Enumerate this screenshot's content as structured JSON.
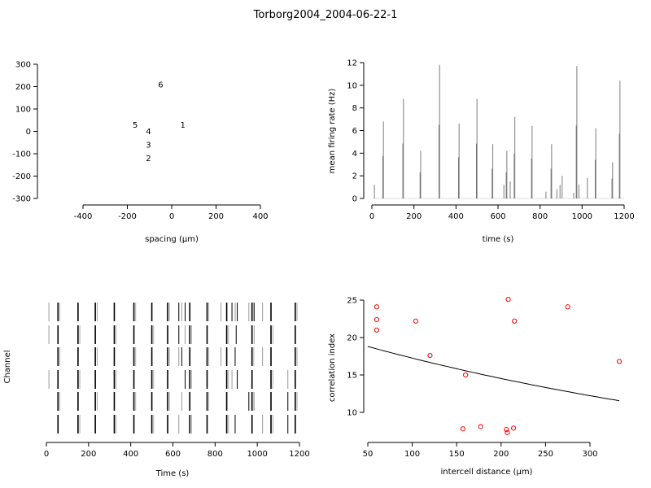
{
  "title": "Torborg2004_2004-06-22-1",
  "chart_data": [
    {
      "type": "scatter",
      "id": "layout",
      "xlabel": "spacing (µm)",
      "ylabel": "",
      "xlim": [
        -400,
        400
      ],
      "ylim": [
        -300,
        300
      ],
      "xticks": [
        -400,
        -200,
        0,
        200,
        400
      ],
      "yticks": [
        -300,
        -200,
        -100,
        0,
        100,
        200,
        300
      ],
      "points": [
        {
          "label": "1",
          "x": 50,
          "y": 30
        },
        {
          "label": "2",
          "x": -105,
          "y": -120
        },
        {
          "label": "3",
          "x": -105,
          "y": -60
        },
        {
          "label": "4",
          "x": -105,
          "y": 0
        },
        {
          "label": "5",
          "x": -165,
          "y": 30
        },
        {
          "label": "6",
          "x": -50,
          "y": 210
        }
      ]
    },
    {
      "type": "line",
      "id": "rate",
      "xlabel": "time (s)",
      "ylabel": "mean firing rate (Hz)",
      "xlim": [
        0,
        1200
      ],
      "ylim": [
        0,
        12
      ],
      "xticks": [
        0,
        200,
        400,
        600,
        800,
        1000,
        1200
      ],
      "yticks": [
        0,
        2,
        4,
        6,
        8,
        10,
        12
      ],
      "bursts": [
        {
          "t": 12,
          "rate": 1.2
        },
        {
          "t": 55,
          "rate": 6.8
        },
        {
          "t": 150,
          "rate": 8.8
        },
        {
          "t": 232,
          "rate": 4.2
        },
        {
          "t": 322,
          "rate": 11.8
        },
        {
          "t": 415,
          "rate": 6.6
        },
        {
          "t": 500,
          "rate": 8.8
        },
        {
          "t": 575,
          "rate": 4.8
        },
        {
          "t": 628,
          "rate": 1.2
        },
        {
          "t": 642,
          "rate": 4.2
        },
        {
          "t": 658,
          "rate": 1.5
        },
        {
          "t": 680,
          "rate": 7.2
        },
        {
          "t": 762,
          "rate": 6.4
        },
        {
          "t": 828,
          "rate": 0.6
        },
        {
          "t": 855,
          "rate": 4.8
        },
        {
          "t": 880,
          "rate": 0.8
        },
        {
          "t": 895,
          "rate": 1.2
        },
        {
          "t": 905,
          "rate": 2.0
        },
        {
          "t": 960,
          "rate": 0.5
        },
        {
          "t": 975,
          "rate": 11.7
        },
        {
          "t": 985,
          "rate": 1.2
        },
        {
          "t": 1025,
          "rate": 1.8
        },
        {
          "t": 1065,
          "rate": 6.2
        },
        {
          "t": 1145,
          "rate": 3.2
        },
        {
          "t": 1180,
          "rate": 10.4
        }
      ]
    },
    {
      "type": "raster",
      "id": "raster",
      "xlabel": "Time (s)",
      "ylabel": "Channel",
      "xlim": [
        0,
        1200
      ],
      "xticks": [
        0,
        200,
        400,
        600,
        800,
        1000,
        1200
      ],
      "bursts": [
        55,
        150,
        232,
        322,
        415,
        500,
        575,
        680,
        762,
        855,
        975,
        1065,
        1180
      ],
      "channels": [
        {
          "channel": 1,
          "extra_spikes": [
            12,
            628,
            642,
            658,
            828,
            880,
            895,
            905,
            960,
            985,
            1025
          ]
        },
        {
          "channel": 2,
          "extra_spikes": [
            12,
            628,
            658,
            900,
            985
          ]
        },
        {
          "channel": 3,
          "extra_spikes": [
            628,
            642,
            828,
            895,
            1025
          ]
        },
        {
          "channel": 4,
          "extra_spikes": [
            12,
            658,
            880,
            905,
            1145
          ]
        },
        {
          "channel": 5,
          "extra_spikes": [
            642,
            960,
            985,
            1145
          ]
        },
        {
          "channel": 6,
          "extra_spikes": [
            628,
            895,
            1025,
            1145
          ]
        }
      ]
    },
    {
      "type": "scatter",
      "id": "corr",
      "xlabel": "intercell distance (µm)",
      "ylabel": "correlation index",
      "xlim": [
        50,
        330
      ],
      "ylim": [
        7,
        25
      ],
      "xticks": [
        50,
        100,
        150,
        200,
        250,
        300
      ],
      "yticks": [
        10,
        15,
        20,
        25
      ],
      "points": [
        {
          "x": 60,
          "y": 24.1
        },
        {
          "x": 60,
          "y": 22.4
        },
        {
          "x": 60,
          "y": 21.0
        },
        {
          "x": 104,
          "y": 22.2
        },
        {
          "x": 120,
          "y": 17.6
        },
        {
          "x": 157,
          "y": 7.8
        },
        {
          "x": 160,
          "y": 15.0
        },
        {
          "x": 177,
          "y": 8.1
        },
        {
          "x": 206,
          "y": 7.7
        },
        {
          "x": 207,
          "y": 7.3
        },
        {
          "x": 208,
          "y": 25.1
        },
        {
          "x": 214,
          "y": 7.9
        },
        {
          "x": 215,
          "y": 22.2
        },
        {
          "x": 275,
          "y": 24.1
        },
        {
          "x": 333,
          "y": 16.8
        }
      ],
      "fit": {
        "x0": 50,
        "x1": 333,
        "a": 18.8,
        "b": 0.00172
      }
    }
  ],
  "colors": {
    "axis": "#000000",
    "rate_line": "#888888",
    "spike_dark": "#000000",
    "spike_light": "#999999",
    "point": "#ff0000"
  }
}
